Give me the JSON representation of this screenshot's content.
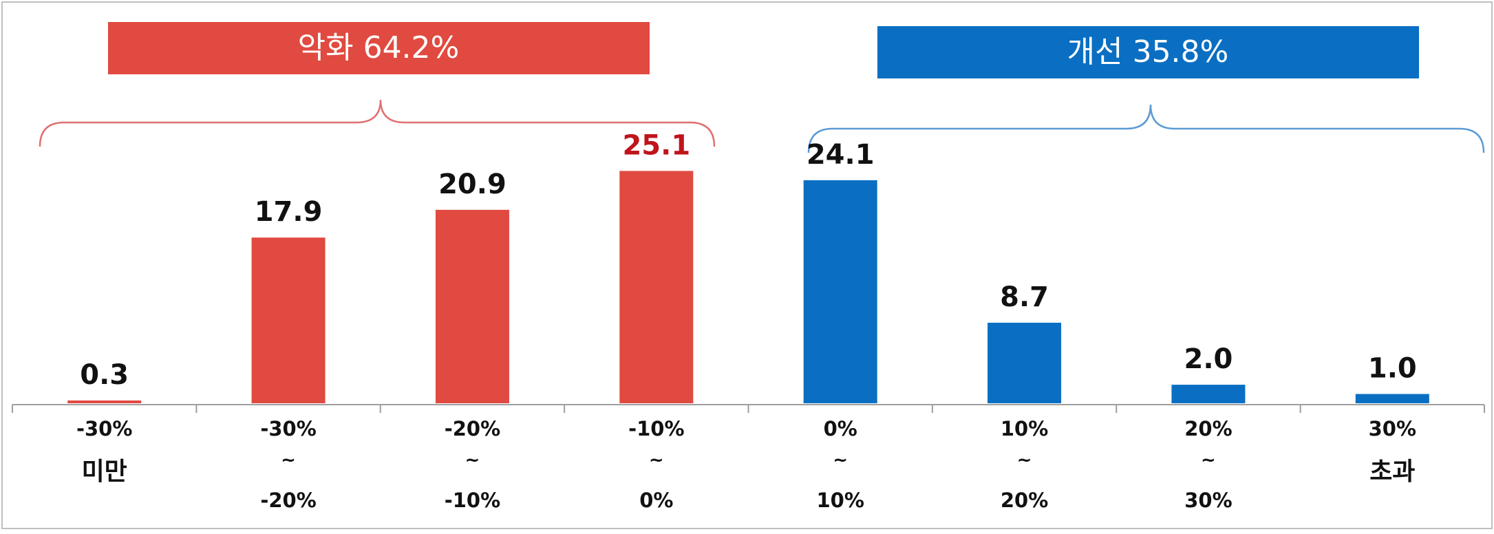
{
  "chart_data": {
    "type": "bar",
    "categories": [
      [
        "-30%",
        "미만"
      ],
      [
        "-30%",
        "~",
        "-20%"
      ],
      [
        "-20%",
        "~",
        "-10%"
      ],
      [
        "-10%",
        "~",
        "0%"
      ],
      [
        "0%",
        "~",
        "10%"
      ],
      [
        "10%",
        "~",
        "20%"
      ],
      [
        "20%",
        "~",
        "30%"
      ],
      [
        "30%",
        "초과"
      ]
    ],
    "values": [
      0.3,
      17.9,
      20.9,
      25.1,
      24.1,
      8.7,
      2.0,
      1.0
    ],
    "value_labels": [
      "0.3",
      "17.9",
      "20.9",
      "25.1",
      "24.1",
      "8.7",
      "2.0",
      "1.0"
    ],
    "groups": [
      {
        "label": "악화 64.2%",
        "indices": [
          0,
          1,
          2,
          3
        ],
        "color": "#e04a40"
      },
      {
        "label": "개선 35.8%",
        "indices": [
          4,
          5,
          6,
          7
        ],
        "color": "#0a6fc2"
      }
    ],
    "highlight_color": "#c0141c",
    "highlight_index": 3,
    "label_color": "#111111",
    "ylim": [
      0,
      30
    ],
    "grid": false
  }
}
